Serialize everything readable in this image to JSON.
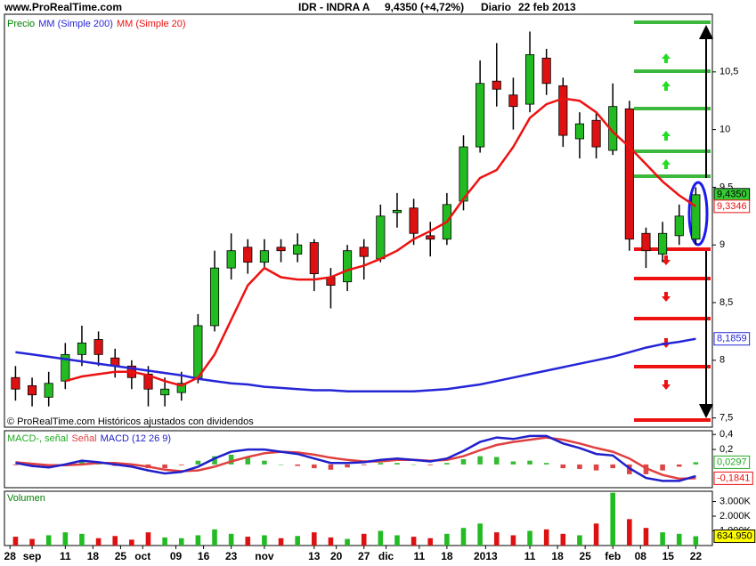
{
  "header": {
    "site": "www.ProRealTime.com",
    "symbol": "IDR - INDRA A",
    "price": "9,4350 (+4,72%)",
    "period": "Diario",
    "date": "22 feb 2013"
  },
  "annotations": {
    "up_levels": 5,
    "down_levels": 5
  },
  "chart_data": [
    {
      "type": "candlestick",
      "x": [
        1,
        4,
        7,
        10,
        13,
        16,
        19,
        22,
        25,
        28,
        31,
        34,
        37,
        40,
        43,
        46,
        49,
        52,
        55,
        58,
        61,
        64,
        67,
        70,
        73,
        76,
        79,
        82,
        85,
        88,
        91,
        94,
        97,
        100,
        103,
        106,
        109,
        112,
        115,
        118,
        121,
        124
      ],
      "xlim": [
        -1,
        127
      ],
      "ylim": [
        7.42,
        11.0
      ],
      "yticks": [
        {
          "value": 7.5,
          "label": "7,5"
        },
        8,
        {
          "value": 8.5,
          "label": "8,5"
        },
        9,
        {
          "value": 9.5,
          "label": "9,5"
        },
        10,
        {
          "value": 10.5,
          "label": "10,5"
        }
      ],
      "price": {
        "name": "Precio",
        "color": "#008000",
        "up_color": "#22bb22",
        "down_color": "#dd1111",
        "open": [
          7.85,
          7.78,
          7.68,
          7.82,
          8.05,
          8.18,
          8.02,
          7.95,
          7.88,
          7.7,
          7.72,
          7.85,
          8.3,
          8.8,
          8.98,
          8.85,
          8.98,
          8.92,
          9.02,
          8.72,
          8.68,
          8.98,
          8.88,
          9.28,
          9.32,
          9.08,
          9.05,
          9.38,
          9.85,
          10.42,
          10.3,
          10.22,
          10.62,
          10.38,
          9.92,
          10.08,
          9.82,
          10.18,
          9.1,
          8.92,
          9.08,
          9.05
        ],
        "high": [
          7.95,
          7.85,
          7.9,
          8.15,
          8.3,
          8.25,
          8.1,
          8.0,
          7.95,
          7.85,
          7.9,
          8.4,
          8.95,
          9.1,
          9.05,
          9.05,
          9.05,
          9.1,
          9.05,
          8.8,
          9.0,
          9.05,
          9.35,
          9.45,
          9.4,
          9.2,
          9.45,
          9.95,
          10.6,
          10.75,
          10.45,
          10.85,
          10.7,
          10.45,
          10.15,
          10.15,
          10.4,
          10.25,
          9.15,
          9.2,
          9.35,
          9.5
        ],
        "low": [
          7.65,
          7.6,
          7.6,
          7.75,
          7.95,
          7.95,
          7.85,
          7.75,
          7.6,
          7.6,
          7.65,
          7.8,
          8.25,
          8.7,
          8.75,
          8.8,
          8.85,
          8.85,
          8.6,
          8.45,
          8.6,
          8.7,
          8.85,
          9.15,
          9.0,
          8.9,
          9.0,
          9.3,
          9.8,
          10.2,
          10.0,
          10.15,
          10.3,
          9.85,
          9.75,
          9.75,
          9.78,
          8.95,
          8.8,
          8.85,
          9.0,
          9.0
        ],
        "close": [
          7.75,
          7.7,
          7.8,
          8.05,
          8.15,
          8.05,
          7.95,
          7.85,
          7.75,
          7.75,
          7.8,
          8.3,
          8.8,
          8.95,
          8.85,
          8.95,
          8.95,
          9.0,
          8.75,
          8.65,
          8.95,
          8.9,
          9.25,
          9.3,
          9.1,
          9.05,
          9.35,
          9.85,
          10.4,
          10.35,
          10.2,
          10.65,
          10.4,
          9.95,
          10.05,
          9.85,
          10.2,
          9.05,
          8.95,
          9.1,
          9.25,
          9.435
        ]
      },
      "series": [
        {
          "name": "MM (Simple 200)",
          "color": "#2525d8",
          "values": [
            8.07,
            8.05,
            8.03,
            8.01,
            7.99,
            7.97,
            7.95,
            7.93,
            7.91,
            7.89,
            7.87,
            7.84,
            7.82,
            7.8,
            7.79,
            7.77,
            7.76,
            7.75,
            7.74,
            7.74,
            7.73,
            7.73,
            7.73,
            7.73,
            7.73,
            7.74,
            7.75,
            7.77,
            7.79,
            7.82,
            7.85,
            7.88,
            7.91,
            7.94,
            7.97,
            8.0,
            8.03,
            8.07,
            8.11,
            8.14,
            8.16,
            8.1859
          ]
        },
        {
          "name": "MM (Simple 20)",
          "color": "#ee1111",
          "values": [
            null,
            null,
            null,
            7.82,
            7.86,
            7.88,
            7.9,
            7.9,
            7.87,
            7.82,
            7.78,
            7.85,
            8.05,
            8.35,
            8.65,
            8.8,
            8.72,
            8.7,
            8.7,
            8.72,
            8.78,
            8.82,
            8.88,
            8.95,
            9.05,
            9.12,
            9.2,
            9.4,
            9.58,
            9.65,
            9.85,
            10.1,
            10.22,
            10.27,
            10.25,
            10.15,
            9.98,
            9.85,
            9.7,
            9.55,
            9.43,
            9.3346
          ]
        }
      ],
      "last_values": [
        {
          "value": 9.435,
          "label": "9,4350",
          "color": "#000000",
          "background": "#33cc33"
        },
        {
          "value": 9.3346,
          "label": "9,3346",
          "color": "#ee1111",
          "background": "#ffffff"
        },
        {
          "value": 8.1859,
          "label": "8,1859",
          "color": "#2525d8",
          "background": "#ffffff"
        }
      ],
      "note": "© ProRealTime.com Históricos ajustados con dividendos"
    },
    {
      "type": "macd",
      "xlim": [
        -1,
        127
      ],
      "ylim": [
        -0.31,
        0.45
      ],
      "yticks": [
        {
          "value": 0.2,
          "label": "0,2"
        },
        {
          "value": 0.4,
          "label": "0,4"
        }
      ],
      "series": [
        {
          "name": "MACD-, señal",
          "kind": "bar",
          "color": "#22aa22",
          "up_color": "#33bb33",
          "down_color": "#dd4444",
          "values": [
            -0.01,
            -0.03,
            -0.03,
            0.01,
            0.05,
            0.01,
            -0.02,
            -0.03,
            -0.05,
            -0.05,
            -0.01,
            0.05,
            0.11,
            0.13,
            0.1,
            0.05,
            0.0,
            -0.02,
            -0.05,
            -0.07,
            -0.04,
            -0.01,
            0.02,
            0.02,
            0.0,
            -0.01,
            0.02,
            0.07,
            0.11,
            0.1,
            0.04,
            0.05,
            0.02,
            -0.05,
            -0.06,
            -0.08,
            -0.05,
            -0.13,
            -0.13,
            -0.08,
            -0.03,
            0.0297
          ]
        },
        {
          "name": "Señal",
          "color": "#e04040",
          "values": [
            0.03,
            0.01,
            -0.01,
            -0.01,
            0.0,
            0.02,
            0.02,
            0.0,
            -0.03,
            -0.07,
            -0.09,
            -0.08,
            -0.03,
            0.04,
            0.1,
            0.15,
            0.17,
            0.16,
            0.13,
            0.09,
            0.06,
            0.04,
            0.04,
            0.06,
            0.06,
            0.05,
            0.06,
            0.11,
            0.19,
            0.26,
            0.3,
            0.33,
            0.36,
            0.33,
            0.28,
            0.22,
            0.17,
            0.08,
            -0.05,
            -0.14,
            -0.19,
            -0.1841
          ]
        },
        {
          "name": "MACD (12 26 9)",
          "color": "#2020cc",
          "values": [
            0.02,
            -0.02,
            -0.04,
            0.0,
            0.05,
            0.03,
            0.0,
            -0.03,
            -0.08,
            -0.12,
            -0.1,
            -0.03,
            0.08,
            0.17,
            0.2,
            0.2,
            0.17,
            0.14,
            0.08,
            0.02,
            0.02,
            0.03,
            0.06,
            0.08,
            0.06,
            0.04,
            0.08,
            0.18,
            0.3,
            0.36,
            0.34,
            0.38,
            0.38,
            0.28,
            0.22,
            0.14,
            0.12,
            -0.05,
            -0.18,
            -0.22,
            -0.22,
            -0.1544
          ]
        }
      ],
      "last_values": [
        {
          "value": 0.0297,
          "label": "0,0297",
          "color": "#22aa22",
          "background": "#ffffff"
        },
        {
          "value": -0.1841,
          "label": "-0,1841",
          "color": "#ee1111",
          "background": "#ffffff"
        }
      ]
    },
    {
      "type": "bar",
      "title": "Volumen",
      "xlim": [
        -1,
        127
      ],
      "ylim": [
        0,
        3700
      ],
      "yticks": [
        {
          "value": 1000,
          "label": "1.000K"
        },
        {
          "value": 2000,
          "label": "2.000K"
        },
        {
          "value": 3000,
          "label": "3.000K"
        }
      ],
      "up_color": "#22bb22",
      "down_color": "#dd1111",
      "values": [
        600,
        450,
        700,
        900,
        800,
        500,
        650,
        400,
        900,
        550,
        500,
        700,
        1100,
        800,
        600,
        700,
        500,
        650,
        900,
        550,
        450,
        800,
        1000,
        700,
        600,
        500,
        800,
        1200,
        1500,
        900,
        700,
        1000,
        1100,
        800,
        700,
        1500,
        3600,
        1800,
        1200,
        900,
        800,
        634.95
      ],
      "last_values": [
        {
          "value": 634.95,
          "label": "634.950",
          "color": "#000000",
          "background": "#ffff00"
        }
      ],
      "xticks": [
        {
          "value": 0,
          "label": "28"
        },
        {
          "value": 4,
          "label": "sep"
        },
        {
          "value": 10,
          "label": "11"
        },
        {
          "value": 15,
          "label": "18"
        },
        {
          "value": 20,
          "label": "25"
        },
        {
          "value": 24,
          "label": "oct"
        },
        {
          "value": 30,
          "label": "09"
        },
        {
          "value": 35,
          "label": "16"
        },
        {
          "value": 40,
          "label": "23"
        },
        {
          "value": 46,
          "label": "nov"
        },
        {
          "value": 55,
          "label": "13"
        },
        {
          "value": 59,
          "label": "20"
        },
        {
          "value": 64,
          "label": "27"
        },
        {
          "value": 68,
          "label": "dic"
        },
        {
          "value": 74,
          "label": "11"
        },
        {
          "value": 79,
          "label": "18"
        },
        {
          "value": 86,
          "label": "2013"
        },
        {
          "value": 94,
          "label": "11"
        },
        {
          "value": 99,
          "label": "18"
        },
        {
          "value": 104,
          "label": "25"
        },
        {
          "value": 109,
          "label": "feb"
        },
        {
          "value": 114,
          "label": "08"
        },
        {
          "value": 119,
          "label": "15"
        },
        {
          "value": 124,
          "label": "22"
        }
      ]
    }
  ]
}
